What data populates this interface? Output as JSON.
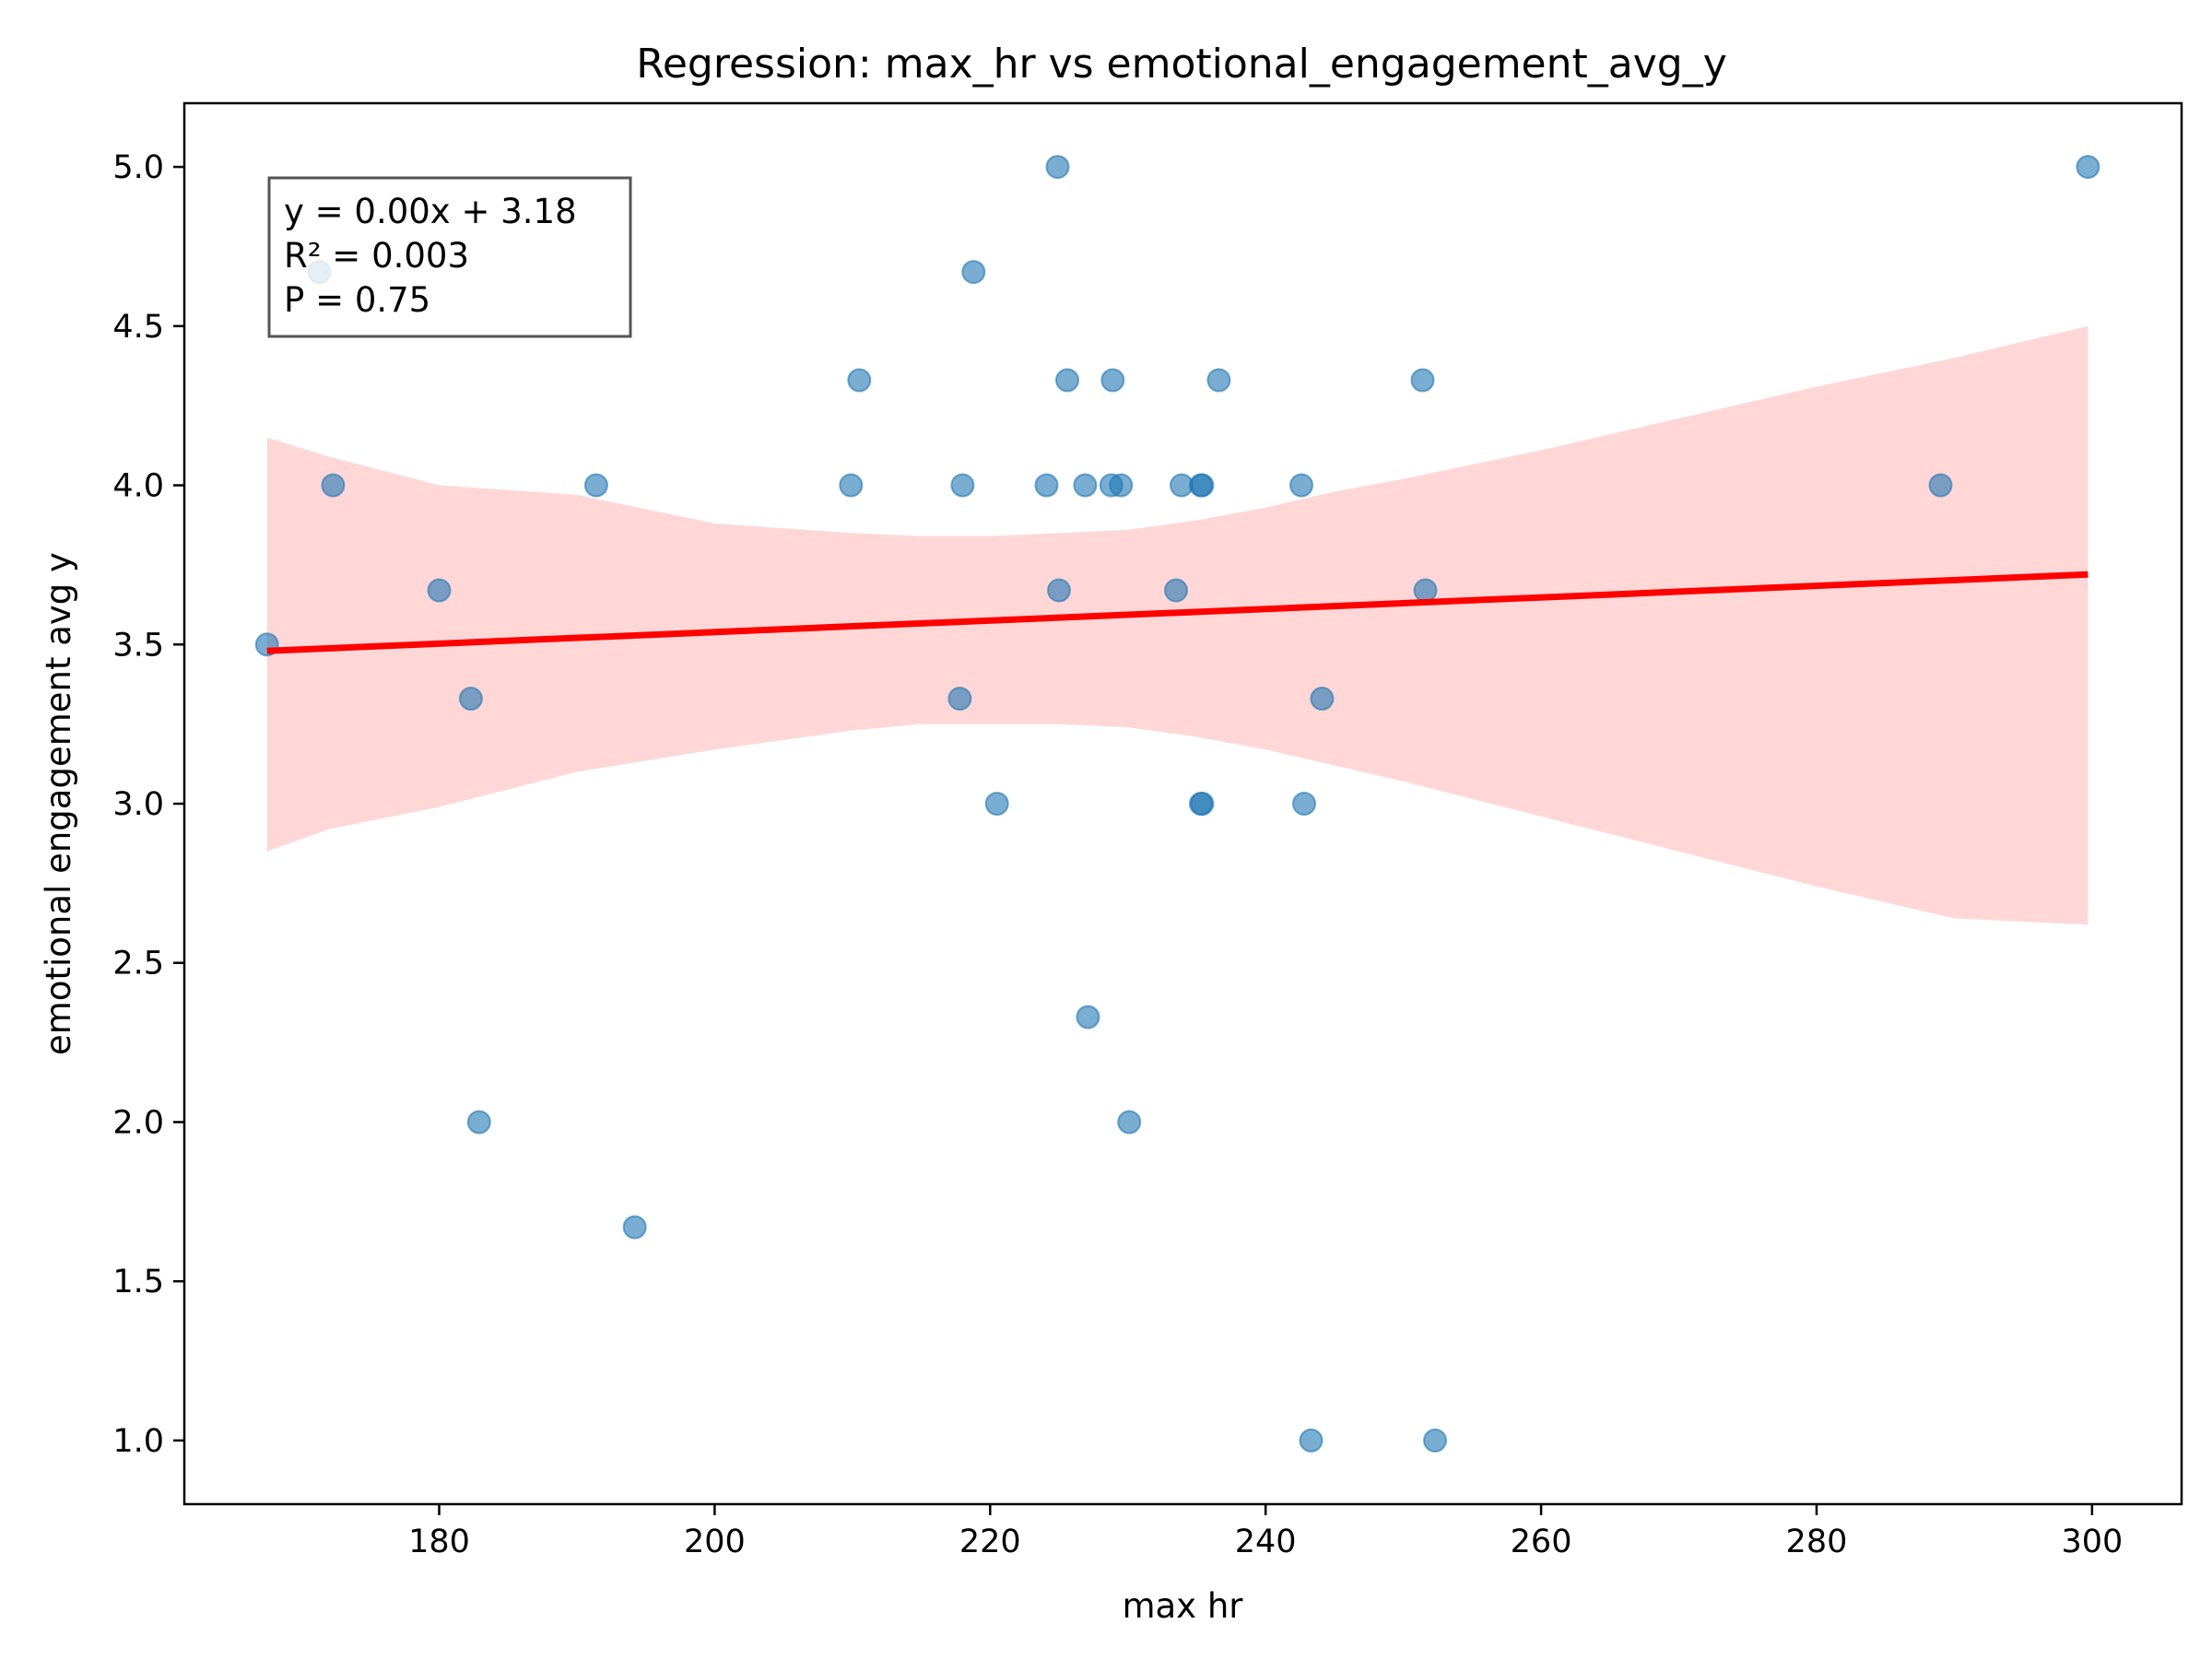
{
  "chart_data": {
    "type": "scatter",
    "title": "Regression: max_hr vs emotional_engagement_avg_y",
    "xlabel": "max hr",
    "ylabel": "emotional engagement avg y",
    "xlim": [
      161.5,
      306.5
    ],
    "ylim": [
      0.8,
      5.2
    ],
    "xticks": [
      180,
      200,
      220,
      240,
      260,
      280,
      300
    ],
    "xtick_labels": [
      "180",
      "200",
      "220",
      "240",
      "260",
      "280",
      "300"
    ],
    "yticks": [
      1.0,
      1.5,
      2.0,
      2.5,
      3.0,
      3.5,
      4.0,
      4.5,
      5.0
    ],
    "ytick_labels": [
      "1.0",
      "1.5",
      "2.0",
      "2.5",
      "3.0",
      "3.5",
      "4.0",
      "4.5",
      "5.0"
    ],
    "grid": false,
    "points_color": "#1f77b4",
    "line_color": "#ff0000",
    "band_color": "#ffb0b0",
    "points": [
      {
        "x": 167.5,
        "y": 3.5
      },
      {
        "x": 171.3,
        "y": 4.67
      },
      {
        "x": 172.3,
        "y": 4.0
      },
      {
        "x": 180.0,
        "y": 3.67
      },
      {
        "x": 182.3,
        "y": 3.33
      },
      {
        "x": 182.9,
        "y": 2.0
      },
      {
        "x": 191.4,
        "y": 4.0
      },
      {
        "x": 194.2,
        "y": 1.67
      },
      {
        "x": 209.9,
        "y": 4.0
      },
      {
        "x": 210.5,
        "y": 4.33
      },
      {
        "x": 217.8,
        "y": 3.33
      },
      {
        "x": 218.0,
        "y": 4.0
      },
      {
        "x": 218.8,
        "y": 4.67
      },
      {
        "x": 220.5,
        "y": 3.0
      },
      {
        "x": 224.1,
        "y": 4.0
      },
      {
        "x": 224.9,
        "y": 5.0
      },
      {
        "x": 225.0,
        "y": 3.67
      },
      {
        "x": 225.6,
        "y": 4.33
      },
      {
        "x": 226.9,
        "y": 4.0
      },
      {
        "x": 227.1,
        "y": 2.33
      },
      {
        "x": 228.8,
        "y": 4.0
      },
      {
        "x": 228.9,
        "y": 4.33
      },
      {
        "x": 229.5,
        "y": 4.0
      },
      {
        "x": 230.1,
        "y": 2.0
      },
      {
        "x": 233.5,
        "y": 3.67
      },
      {
        "x": 233.9,
        "y": 4.0
      },
      {
        "x": 235.3,
        "y": 4.0
      },
      {
        "x": 235.4,
        "y": 4.0
      },
      {
        "x": 235.3,
        "y": 3.0
      },
      {
        "x": 235.4,
        "y": 3.0
      },
      {
        "x": 236.6,
        "y": 4.33
      },
      {
        "x": 242.6,
        "y": 4.0
      },
      {
        "x": 242.8,
        "y": 3.0
      },
      {
        "x": 243.3,
        "y": 1.0
      },
      {
        "x": 244.1,
        "y": 3.33
      },
      {
        "x": 251.4,
        "y": 4.33
      },
      {
        "x": 251.6,
        "y": 3.67
      },
      {
        "x": 252.3,
        "y": 1.0
      },
      {
        "x": 289.0,
        "y": 4.0
      },
      {
        "x": 299.7,
        "y": 5.0
      }
    ],
    "regression": {
      "x": [
        167.5,
        299.7
      ],
      "y": [
        3.48,
        3.72
      ]
    },
    "confidence_band": {
      "x": [
        167.5,
        172.0,
        180.0,
        190.0,
        200.0,
        210.0,
        215.0,
        220.0,
        225.0,
        230.0,
        235.0,
        240.0,
        245.0,
        250.0,
        260.0,
        270.0,
        280.0,
        290.0,
        299.7
      ],
      "upper": [
        4.15,
        4.09,
        4.0,
        3.97,
        3.88,
        3.85,
        3.84,
        3.84,
        3.85,
        3.86,
        3.89,
        3.93,
        3.98,
        4.02,
        4.11,
        4.21,
        4.31,
        4.4,
        4.5
      ],
      "lower": [
        2.85,
        2.92,
        2.99,
        3.1,
        3.17,
        3.23,
        3.25,
        3.25,
        3.25,
        3.24,
        3.21,
        3.17,
        3.12,
        3.07,
        2.96,
        2.85,
        2.74,
        2.64,
        2.62
      ]
    },
    "annotation": {
      "lines": [
        "y = 0.00x + 3.18",
        "R² = 0.003",
        "P = 0.75"
      ],
      "placement": "top-left"
    }
  }
}
